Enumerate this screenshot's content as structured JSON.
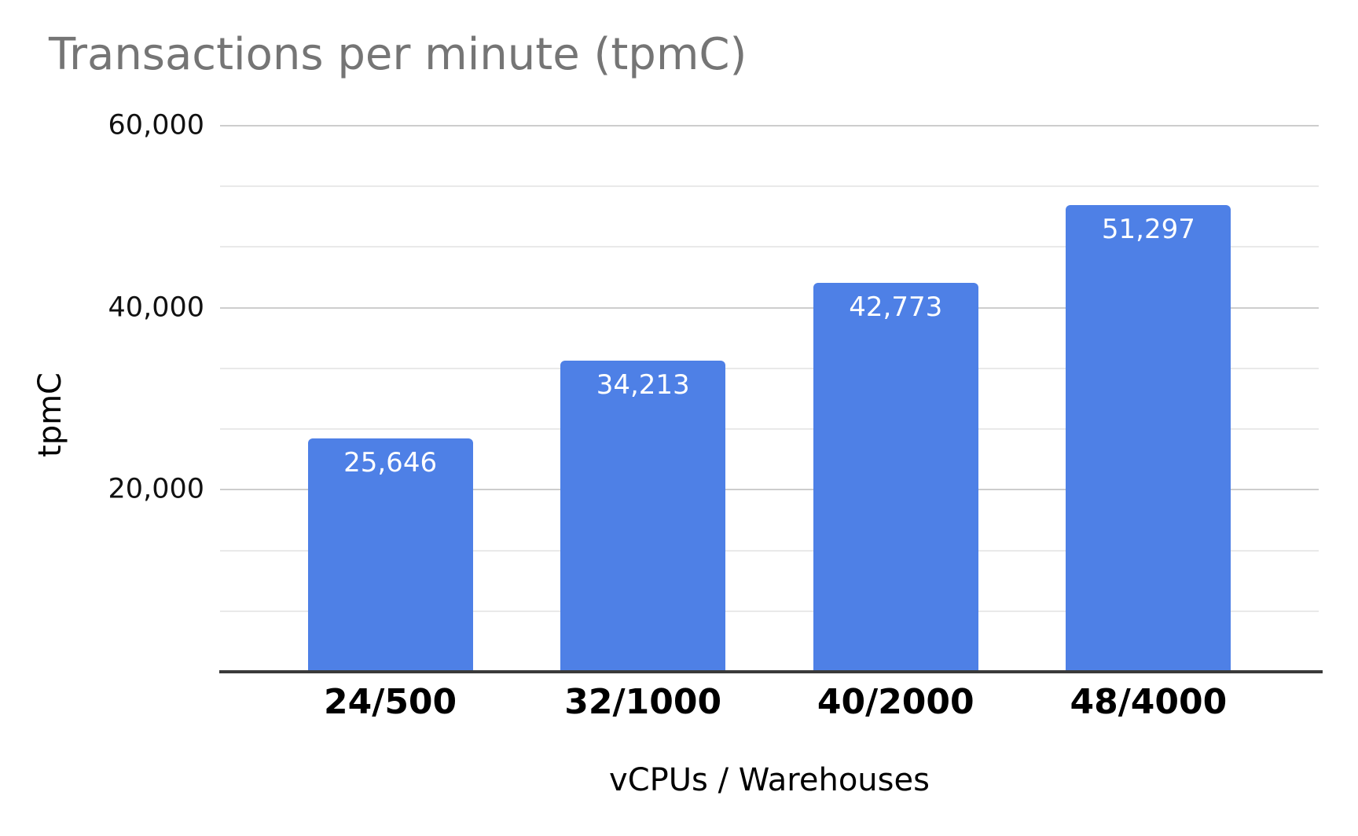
{
  "chart_data": {
    "type": "bar",
    "title": "Transactions per minute (tpmC)",
    "categories": [
      "24/500",
      "32/1000",
      "40/2000",
      "48/4000"
    ],
    "values": [
      25646,
      34213,
      42773,
      51297
    ],
    "value_labels": [
      "25,646",
      "34,213",
      "42,773",
      "51,297"
    ],
    "xlabel": "vCPUs / Warehouses",
    "ylabel": "tpmC",
    "ylim": [
      0,
      60000
    ],
    "y_ticks": [
      {
        "value": 60000,
        "label": "60,000"
      },
      {
        "value": 40000,
        "label": "40,000"
      },
      {
        "value": 20000,
        "label": "20,000"
      }
    ],
    "gridlines": {
      "show": true,
      "major_step": 20000,
      "minor_per_major": 2
    },
    "legend": "none",
    "colors": {
      "bar": "#4E80E6",
      "title_text": "#757575",
      "axis_label_text": "#111111",
      "category_label_text": "#000000",
      "data_label_text": "#ffffff",
      "major_gridline": "#cdcdcd",
      "minor_gridline": "#e9e9e9",
      "baseline": "#3a3a3a",
      "background": "#ffffff"
    }
  }
}
